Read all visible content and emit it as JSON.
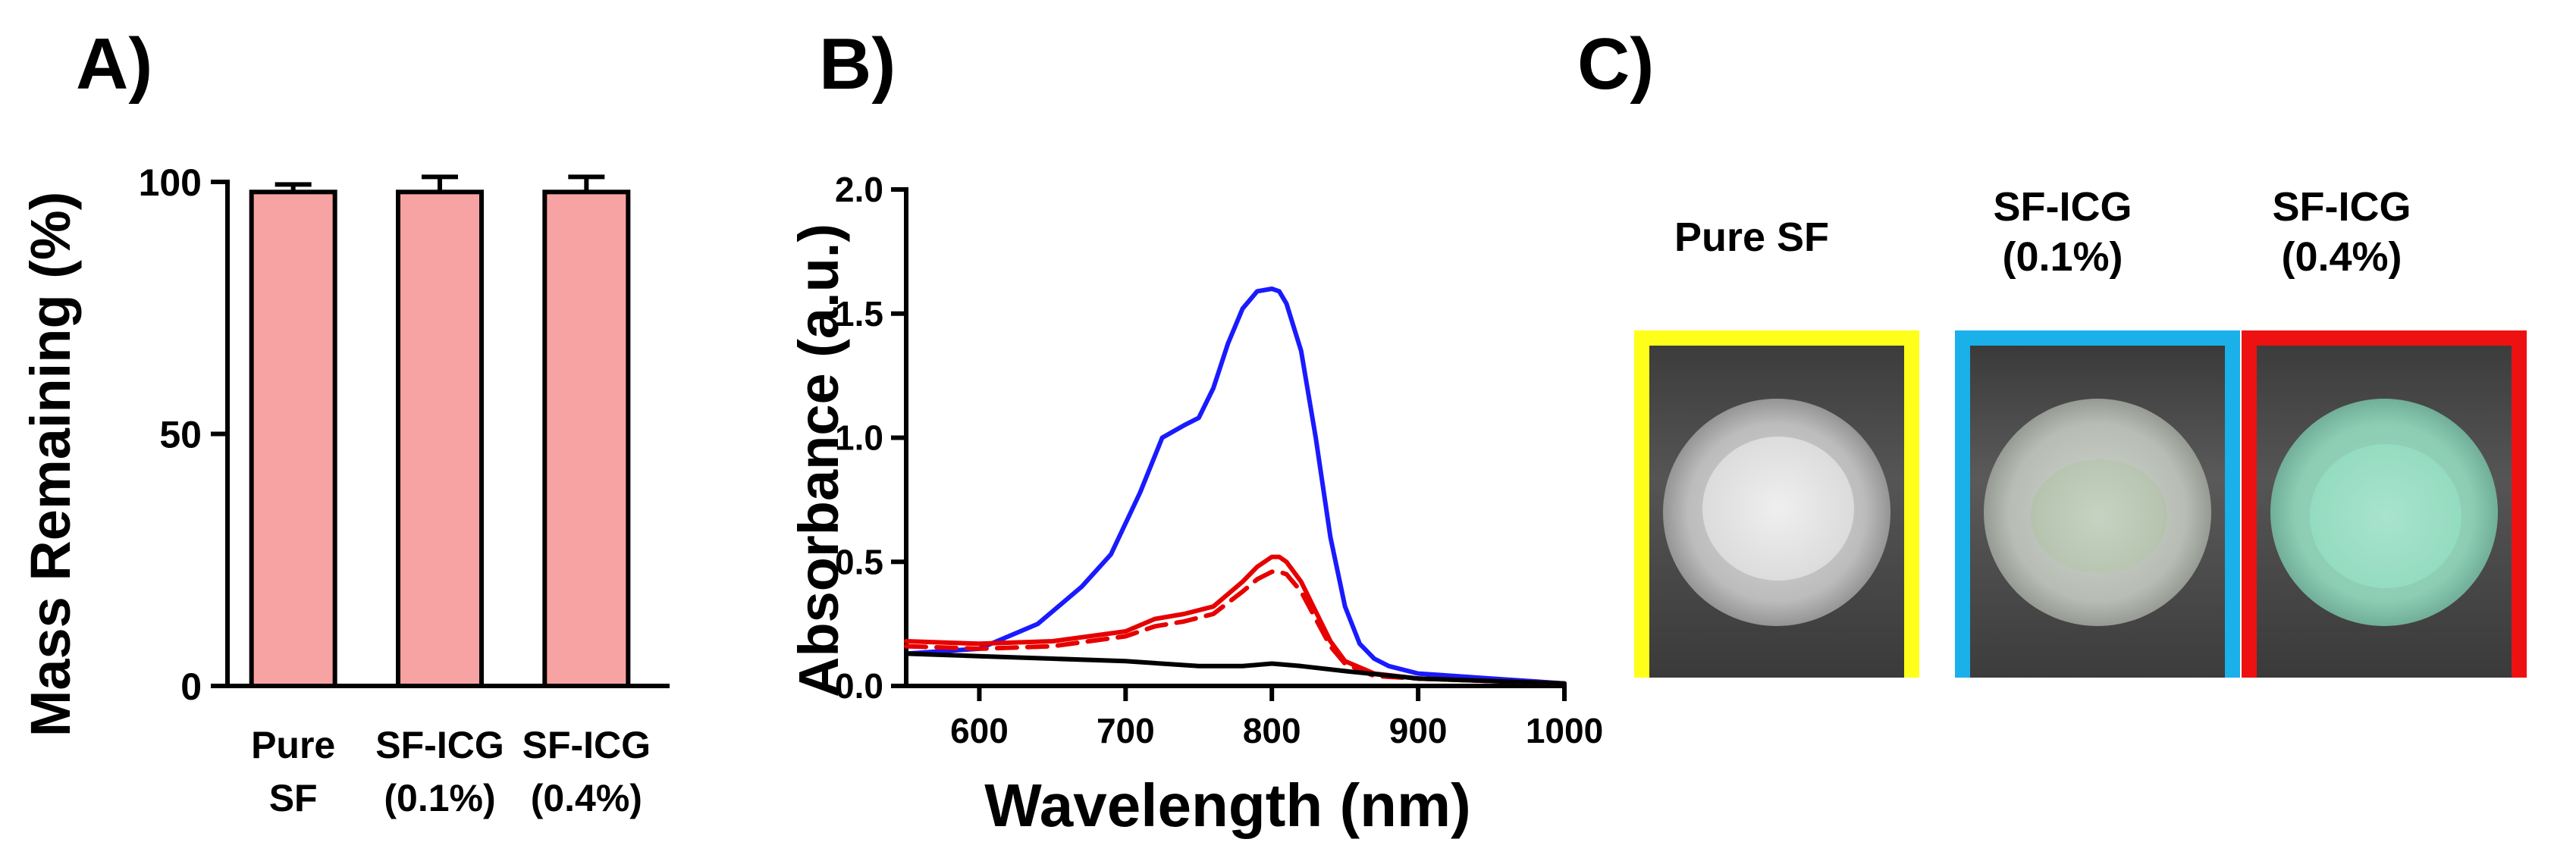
{
  "panels": {
    "a": "A)",
    "b": "B)",
    "c": "C)"
  },
  "chart_data": [
    {
      "type": "bar",
      "panel": "A)",
      "categories": [
        "Pure\nSF",
        "SF-ICG\n(0.1%)",
        "SF-ICG\n(0.4%)"
      ],
      "values": [
        98,
        98,
        98
      ],
      "errors": [
        1.5,
        3,
        3
      ],
      "ylabel": "Mass Remaining (%)",
      "xlabel": "",
      "ylim": [
        0,
        100
      ],
      "yticks": [
        0,
        50,
        100
      ],
      "bar_color": "#f8a3a3"
    },
    {
      "type": "line",
      "panel": "B)",
      "xlabel": "Wavelength (nm)",
      "ylabel": "Absorbance (a.u.)",
      "xlim": [
        550,
        1000
      ],
      "ylim": [
        0,
        2.0
      ],
      "xticks": [
        600,
        700,
        800,
        900,
        1000
      ],
      "yticks": [
        "0.0",
        "0.5",
        "1.0",
        "1.5",
        "2.0"
      ],
      "series": [
        {
          "name": "blue",
          "color": "#1a1aff",
          "dash": false,
          "x": [
            550,
            600,
            640,
            670,
            690,
            710,
            725,
            740,
            750,
            760,
            770,
            780,
            790,
            800,
            805,
            810,
            820,
            830,
            840,
            850,
            860,
            870,
            880,
            900,
            950,
            1000
          ],
          "y": [
            0.13,
            0.15,
            0.25,
            0.4,
            0.53,
            0.78,
            1.0,
            1.05,
            1.08,
            1.2,
            1.38,
            1.52,
            1.59,
            1.6,
            1.59,
            1.54,
            1.35,
            1.0,
            0.6,
            0.32,
            0.17,
            0.11,
            0.08,
            0.05,
            0.03,
            0.01
          ]
        },
        {
          "name": "red",
          "color": "#e60000",
          "dash": false,
          "x": [
            550,
            600,
            650,
            700,
            720,
            740,
            760,
            780,
            790,
            800,
            805,
            810,
            820,
            830,
            840,
            850,
            870,
            900,
            950,
            1000
          ],
          "y": [
            0.18,
            0.17,
            0.18,
            0.22,
            0.27,
            0.29,
            0.32,
            0.42,
            0.48,
            0.52,
            0.52,
            0.5,
            0.42,
            0.3,
            0.18,
            0.1,
            0.05,
            0.03,
            0.02,
            0.01
          ]
        },
        {
          "name": "red-dashed",
          "color": "#e60000",
          "dash": true,
          "x": [
            550,
            600,
            650,
            700,
            720,
            740,
            760,
            780,
            790,
            800,
            805,
            810,
            820,
            830,
            840,
            850,
            870,
            900,
            950,
            1000
          ],
          "y": [
            0.16,
            0.15,
            0.16,
            0.2,
            0.24,
            0.26,
            0.29,
            0.38,
            0.43,
            0.46,
            0.46,
            0.45,
            0.38,
            0.27,
            0.16,
            0.09,
            0.04,
            0.03,
            0.02,
            0.01
          ]
        },
        {
          "name": "black",
          "color": "#000000",
          "dash": false,
          "x": [
            550,
            600,
            650,
            700,
            750,
            780,
            800,
            820,
            850,
            900,
            950,
            1000
          ],
          "y": [
            0.13,
            0.12,
            0.11,
            0.1,
            0.08,
            0.08,
            0.09,
            0.08,
            0.06,
            0.03,
            0.02,
            0.01
          ]
        }
      ]
    }
  ],
  "photos": [
    {
      "label": "Pure SF",
      "border": "#ffff1a"
    },
    {
      "label": "SF-ICG\n(0.1%)",
      "border": "#1ab0ea"
    },
    {
      "label": "SF-ICG\n(0.4%)",
      "border": "#ee1111"
    }
  ]
}
